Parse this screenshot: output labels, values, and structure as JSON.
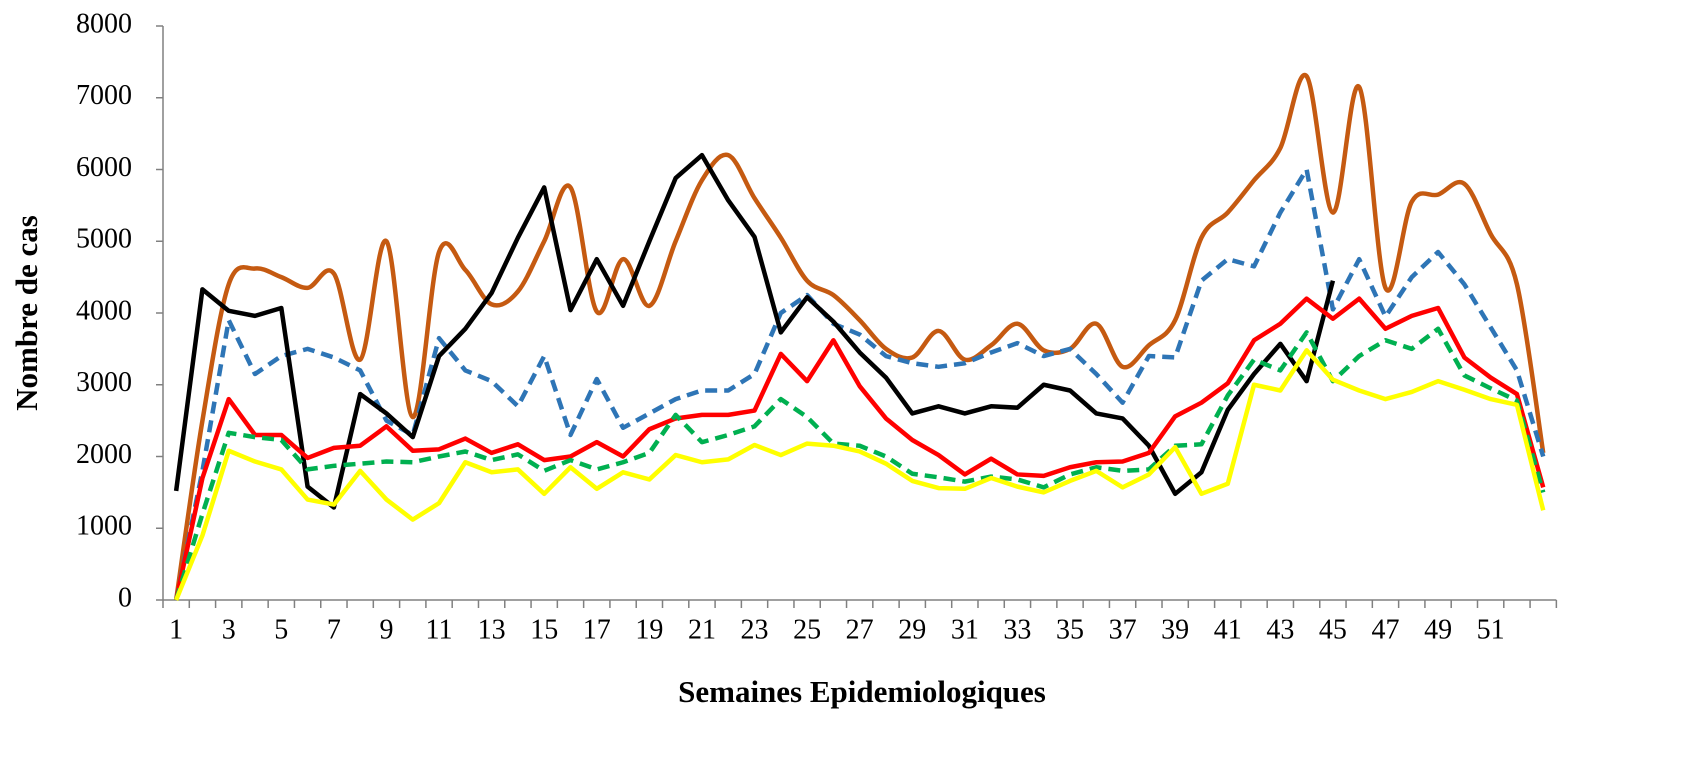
{
  "chart_data": {
    "type": "line",
    "x_label": "Semaines Epidemiologiques",
    "y_label": "Nombre de cas",
    "categories": [
      1,
      null,
      3,
      null,
      5,
      null,
      7,
      null,
      9,
      null,
      11,
      null,
      13,
      null,
      15,
      null,
      17,
      null,
      19,
      null,
      21,
      null,
      23,
      null,
      25,
      null,
      27,
      null,
      29,
      null,
      31,
      null,
      33,
      null,
      35,
      null,
      37,
      null,
      39,
      null,
      41,
      null,
      43,
      null,
      45,
      null,
      47,
      null,
      49,
      null,
      51,
      null,
      null
    ],
    "ylim": [
      0,
      8000
    ],
    "yticks": [
      0,
      1000,
      2000,
      3000,
      4000,
      5000,
      6000,
      7000,
      8000
    ],
    "grid": false,
    "series": [
      {
        "color": "#c55a11",
        "dashed": false,
        "smooth": true,
        "values": [
          0,
          2500,
          4400,
          4620,
          4500,
          4350,
          4550,
          3350,
          5000,
          2550,
          4850,
          4600,
          4120,
          4300,
          5000,
          5750,
          4020,
          4750,
          4100,
          5000,
          5850,
          6200,
          5600,
          5050,
          4450,
          4250,
          3900,
          3500,
          3380,
          3750,
          3350,
          3550,
          3850,
          3480,
          3500,
          3850,
          3250,
          3550,
          3900,
          5050,
          5400,
          5850,
          6300,
          7300,
          5400,
          7150,
          4350,
          5550,
          5650,
          5800,
          5100,
          4400,
          2050
        ]
      },
      {
        "color": "#2e75b6",
        "dashed": true,
        "smooth": false,
        "values": [
          0,
          1800,
          3900,
          3150,
          3400,
          3500,
          3380,
          3200,
          2500,
          2300,
          3650,
          3200,
          3050,
          2700,
          3400,
          2300,
          3080,
          2400,
          2600,
          2800,
          2920,
          2920,
          3150,
          4000,
          4250,
          3850,
          3700,
          3400,
          3300,
          3250,
          3300,
          3450,
          3580,
          3400,
          3500,
          3150,
          2750,
          3400,
          3380,
          4450,
          4750,
          4650,
          5400,
          6000,
          4050,
          4750,
          3950,
          4500,
          4850,
          4400,
          3800,
          3200,
          2000
        ]
      },
      {
        "color": "#000000",
        "dashed": false,
        "smooth": false,
        "values": [
          1520,
          4330,
          4030,
          3960,
          4070,
          1580,
          1290,
          2870,
          2600,
          2270,
          3400,
          3780,
          4280,
          5050,
          5750,
          4040,
          4750,
          4100,
          5000,
          5880,
          6200,
          5570,
          5060,
          3730,
          4220,
          3880,
          3450,
          3100,
          2600,
          2700,
          2600,
          2700,
          2680,
          3000,
          2920,
          2600,
          2530,
          2150,
          1480,
          1780,
          2650,
          3150,
          3570,
          3050,
          4450,
          null,
          null,
          null,
          null,
          null,
          null,
          null,
          null
        ]
      },
      {
        "color": "#ff0000",
        "dashed": false,
        "smooth": false,
        "values": [
          0,
          1700,
          2800,
          2300,
          2300,
          1980,
          2120,
          2150,
          2420,
          2080,
          2100,
          2250,
          2050,
          2170,
          1950,
          2000,
          2200,
          2000,
          2380,
          2530,
          2580,
          2580,
          2640,
          3430,
          3050,
          3620,
          2980,
          2530,
          2230,
          2020,
          1750,
          1970,
          1750,
          1730,
          1850,
          1920,
          1930,
          2050,
          2560,
          2750,
          3020,
          3620,
          3850,
          4200,
          3920,
          4200,
          3780,
          3960,
          4070,
          3380,
          3100,
          2870,
          1570
        ]
      },
      {
        "color": "#00b050",
        "dashed": true,
        "smooth": false,
        "values": [
          0,
          1200,
          2330,
          2270,
          2230,
          1820,
          1870,
          1900,
          1930,
          1920,
          2000,
          2070,
          1950,
          2030,
          1800,
          1950,
          1820,
          1920,
          2050,
          2580,
          2200,
          2300,
          2420,
          2800,
          2550,
          2180,
          2150,
          2000,
          1760,
          1710,
          1650,
          1720,
          1680,
          1570,
          1750,
          1850,
          1800,
          1820,
          2150,
          2170,
          2850,
          3350,
          3200,
          3730,
          3050,
          3400,
          3620,
          3500,
          3780,
          3130,
          2950,
          2780,
          1500
        ]
      },
      {
        "color": "#ffff00",
        "dashed": false,
        "smooth": false,
        "values": [
          0,
          900,
          2080,
          1930,
          1820,
          1400,
          1330,
          1800,
          1400,
          1120,
          1350,
          1920,
          1780,
          1820,
          1480,
          1850,
          1550,
          1780,
          1680,
          2020,
          1920,
          1960,
          2160,
          2020,
          2180,
          2150,
          2070,
          1900,
          1660,
          1560,
          1550,
          1700,
          1580,
          1500,
          1660,
          1800,
          1570,
          1750,
          2130,
          1480,
          1620,
          3000,
          2920,
          3480,
          3070,
          2920,
          2800,
          2900,
          3050,
          2930,
          2800,
          2720,
          1250
        ]
      }
    ]
  }
}
